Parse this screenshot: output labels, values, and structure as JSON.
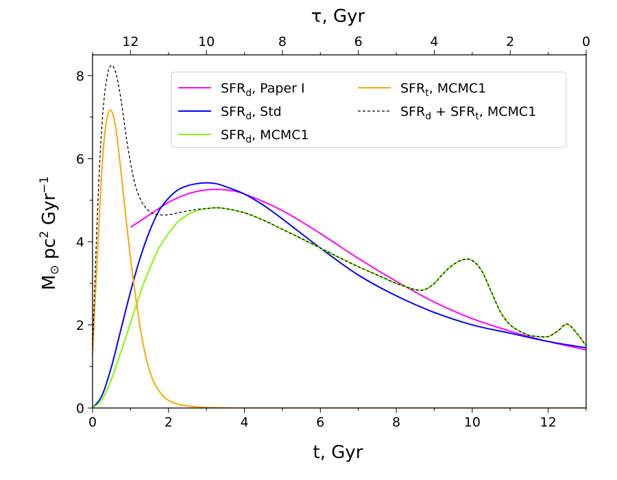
{
  "chart_data": {
    "type": "line",
    "xlabel": "t, Gyr",
    "xlabel_parts": {
      "base": "t,  Gyr"
    },
    "top_xlabel": "τ,  Gyr",
    "ylabel": "M⊙ pc² Gyr⁻¹",
    "ylabel_parts": {
      "m": "M",
      "sun": "⊙",
      "pc": " pc",
      "pc_exp": "2",
      "gyr": " Gyr",
      "gyr_exp": "−1"
    },
    "xlim": [
      0,
      13
    ],
    "ylim": [
      0,
      8.5
    ],
    "x_ticks": [
      0,
      2,
      4,
      6,
      8,
      10,
      12
    ],
    "x_tick_labels": [
      "0",
      "2",
      "4",
      "6",
      "8",
      "10",
      "12"
    ],
    "y_ticks": [
      0,
      2,
      4,
      6,
      8
    ],
    "y_tick_labels": [
      "0",
      "2",
      "4",
      "6",
      "8"
    ],
    "top_ticks_tau": [
      12,
      10,
      8,
      6,
      4,
      2,
      0
    ],
    "top_tick_labels": [
      "12",
      "10",
      "8",
      "6",
      "4",
      "2",
      "0"
    ],
    "tau_total": 13,
    "legend_position": "upper-right",
    "series": [
      {
        "name": "SFRd, Paper I",
        "label": {
          "base": "SFR",
          "sub": "d",
          "rest": ",  Paper I"
        },
        "color": "#ff00ff",
        "dash": "",
        "x": [
          1.0,
          1.5,
          2.0,
          2.5,
          3.0,
          3.5,
          4.0,
          5.0,
          6.0,
          7.0,
          8.0,
          9.0,
          10.0,
          11.0,
          12.0,
          13.0
        ],
        "y": [
          4.35,
          4.65,
          4.95,
          5.15,
          5.25,
          5.25,
          5.15,
          4.75,
          4.2,
          3.6,
          3.05,
          2.55,
          2.15,
          1.85,
          1.6,
          1.4
        ]
      },
      {
        "name": "SFRd, Std",
        "label": {
          "base": "SFR",
          "sub": "d",
          "rest": ",  Std"
        },
        "color": "#0000ff",
        "dash": "",
        "x": [
          0,
          0.25,
          0.5,
          0.75,
          1.0,
          1.25,
          1.5,
          1.75,
          2.0,
          2.25,
          2.5,
          2.75,
          3.0,
          3.25,
          3.5,
          4.0,
          4.5,
          5.0,
          6.0,
          7.0,
          8.0,
          9.0,
          10.0,
          11.0,
          12.0,
          13.0
        ],
        "y": [
          0.0,
          0.3,
          1.0,
          1.9,
          2.8,
          3.6,
          4.25,
          4.75,
          5.05,
          5.25,
          5.35,
          5.4,
          5.42,
          5.4,
          5.33,
          5.15,
          4.88,
          4.55,
          3.85,
          3.2,
          2.7,
          2.3,
          2.0,
          1.8,
          1.6,
          1.45
        ]
      },
      {
        "name": "SFRd, MCMC1",
        "label": {
          "base": "SFR",
          "sub": "d",
          "rest": ",  MCMC1"
        },
        "color": "#7cfc00",
        "dash": "",
        "x": [
          0,
          0.25,
          0.5,
          0.75,
          1.0,
          1.25,
          1.5,
          1.75,
          2.0,
          2.25,
          2.5,
          2.75,
          3.0,
          3.25,
          3.5,
          4.0,
          4.5,
          5.0,
          5.5,
          6.0,
          6.5,
          7.0,
          7.5,
          8.0,
          8.5,
          8.75,
          9.0,
          9.25,
          9.5,
          9.75,
          10.0,
          10.25,
          10.5,
          10.75,
          11.0,
          11.25,
          11.5,
          11.75,
          12.0,
          12.25,
          12.5,
          12.75,
          13.0
        ],
        "y": [
          0.0,
          0.2,
          0.7,
          1.35,
          2.05,
          2.75,
          3.35,
          3.85,
          4.2,
          4.48,
          4.65,
          4.75,
          4.8,
          4.82,
          4.8,
          4.7,
          4.52,
          4.3,
          4.08,
          3.85,
          3.62,
          3.4,
          3.2,
          3.0,
          2.85,
          2.85,
          3.0,
          3.25,
          3.45,
          3.57,
          3.55,
          3.3,
          2.8,
          2.3,
          2.0,
          1.85,
          1.75,
          1.72,
          1.72,
          1.85,
          2.02,
          1.8,
          1.5
        ]
      },
      {
        "name": "SFRt, MCMC1",
        "label": {
          "base": "SFR",
          "sub": "t",
          "rest": ",  MCMC1"
        },
        "color": "#ffa500",
        "dash": "",
        "x": [
          0,
          0.1,
          0.2,
          0.3,
          0.4,
          0.5,
          0.6,
          0.7,
          0.8,
          0.9,
          1.0,
          1.1,
          1.2,
          1.3,
          1.4,
          1.5,
          1.6,
          1.7,
          1.8,
          1.9,
          2.0,
          2.25,
          2.5,
          2.75,
          3.0,
          3.5,
          4.0,
          13.0
        ],
        "y": [
          1.3,
          3.2,
          5.0,
          6.4,
          7.05,
          7.15,
          6.8,
          6.1,
          5.25,
          4.4,
          3.6,
          2.9,
          2.25,
          1.7,
          1.25,
          0.9,
          0.65,
          0.48,
          0.35,
          0.25,
          0.18,
          0.09,
          0.05,
          0.025,
          0.012,
          0.004,
          0.0,
          0.0
        ]
      },
      {
        "name": "SFRd + SFRt, MCMC1",
        "label": {
          "base": "SFR",
          "sub": "d",
          "mid": " + SFR",
          "sub2": "t",
          "rest": ",  MCMC1"
        },
        "color": "#000000",
        "dash": "4,3",
        "x": [
          0,
          0.1,
          0.2,
          0.3,
          0.4,
          0.5,
          0.6,
          0.7,
          0.8,
          0.9,
          1.0,
          1.1,
          1.2,
          1.3,
          1.4,
          1.5,
          1.6,
          1.75,
          2.0,
          2.25,
          2.5,
          2.75,
          3.0,
          3.25,
          3.5,
          4.0,
          4.5,
          5.0,
          5.5,
          6.0,
          6.5,
          7.0,
          7.5,
          8.0,
          8.5,
          8.75,
          9.0,
          9.25,
          9.5,
          9.75,
          10.0,
          10.25,
          10.5,
          10.75,
          11.0,
          11.25,
          11.5,
          11.75,
          12.0,
          12.25,
          12.5,
          12.75,
          13.0
        ],
        "y": [
          1.4,
          4.0,
          6.1,
          7.4,
          8.05,
          8.25,
          8.1,
          7.7,
          7.1,
          6.45,
          5.9,
          5.45,
          5.15,
          4.95,
          4.82,
          4.73,
          4.68,
          4.65,
          4.65,
          4.7,
          4.74,
          4.78,
          4.8,
          4.82,
          4.8,
          4.7,
          4.52,
          4.3,
          4.08,
          3.85,
          3.62,
          3.4,
          3.2,
          3.0,
          2.85,
          2.85,
          3.0,
          3.25,
          3.45,
          3.57,
          3.55,
          3.3,
          2.8,
          2.3,
          2.0,
          1.85,
          1.75,
          1.72,
          1.72,
          1.85,
          2.02,
          1.8,
          1.5
        ]
      }
    ],
    "legend_order": [
      0,
      3,
      1,
      4,
      2
    ]
  }
}
